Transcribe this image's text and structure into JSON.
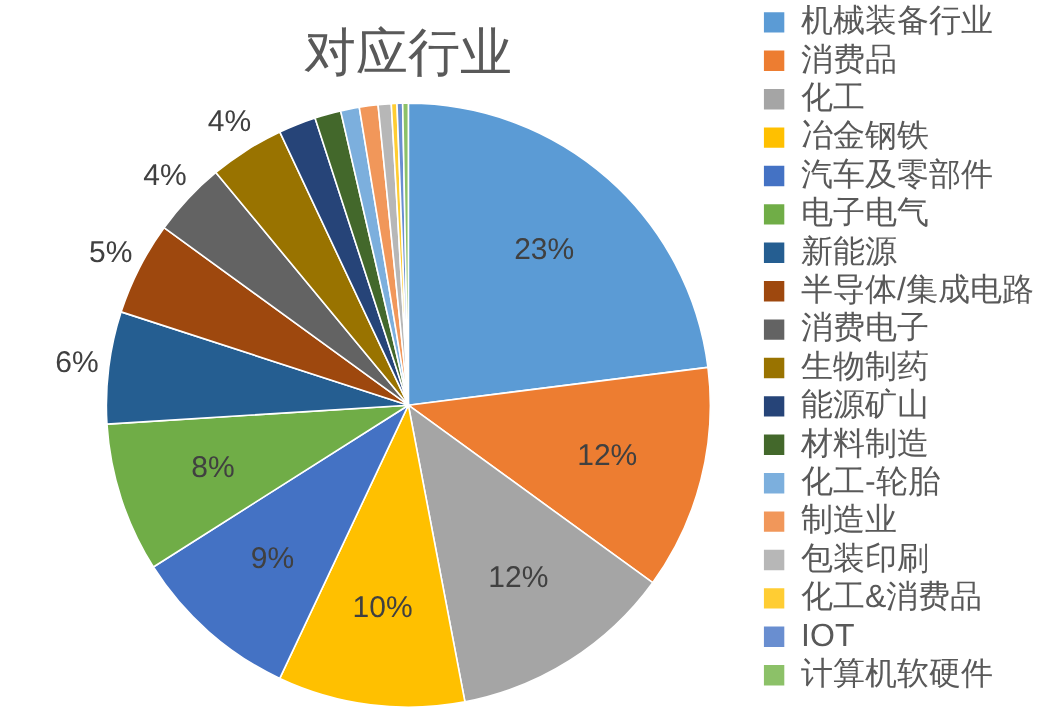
{
  "chart_data": {
    "type": "pie",
    "title": "对应行业",
    "categories": [
      "机械装备行业",
      "消费品",
      "化工",
      "冶金钢铁",
      "汽车及零部件",
      "电子电气",
      "新能源",
      "半导体/集成电路",
      "消费电子",
      "生物制药",
      "能源矿山",
      "材料制造",
      "化工-轮胎",
      "制造业",
      "包装印刷",
      "化工&消费品",
      "IOT",
      "计算机软硬件"
    ],
    "values": [
      23,
      12,
      12,
      10,
      9,
      8,
      6,
      5,
      4,
      4,
      2,
      1.4,
      1,
      1,
      0.7,
      0.3,
      0.3,
      0.3
    ],
    "colors": [
      "#5b9bd5",
      "#ed7d31",
      "#a5a5a5",
      "#ffc000",
      "#4472c4",
      "#70ad47",
      "#255e91",
      "#9e480e",
      "#636363",
      "#997300",
      "#264478",
      "#43682b",
      "#7cafdd",
      "#f1975a",
      "#b7b7b7",
      "#ffcd33",
      "#698ed0",
      "#8cc168"
    ],
    "value_labels": [
      "23%",
      "12%",
      "12%",
      "10%",
      "9%",
      "8%",
      "6%",
      "5%",
      "4%",
      "4%",
      null,
      null,
      null,
      null,
      null,
      null,
      null,
      null
    ],
    "legend": "right"
  }
}
